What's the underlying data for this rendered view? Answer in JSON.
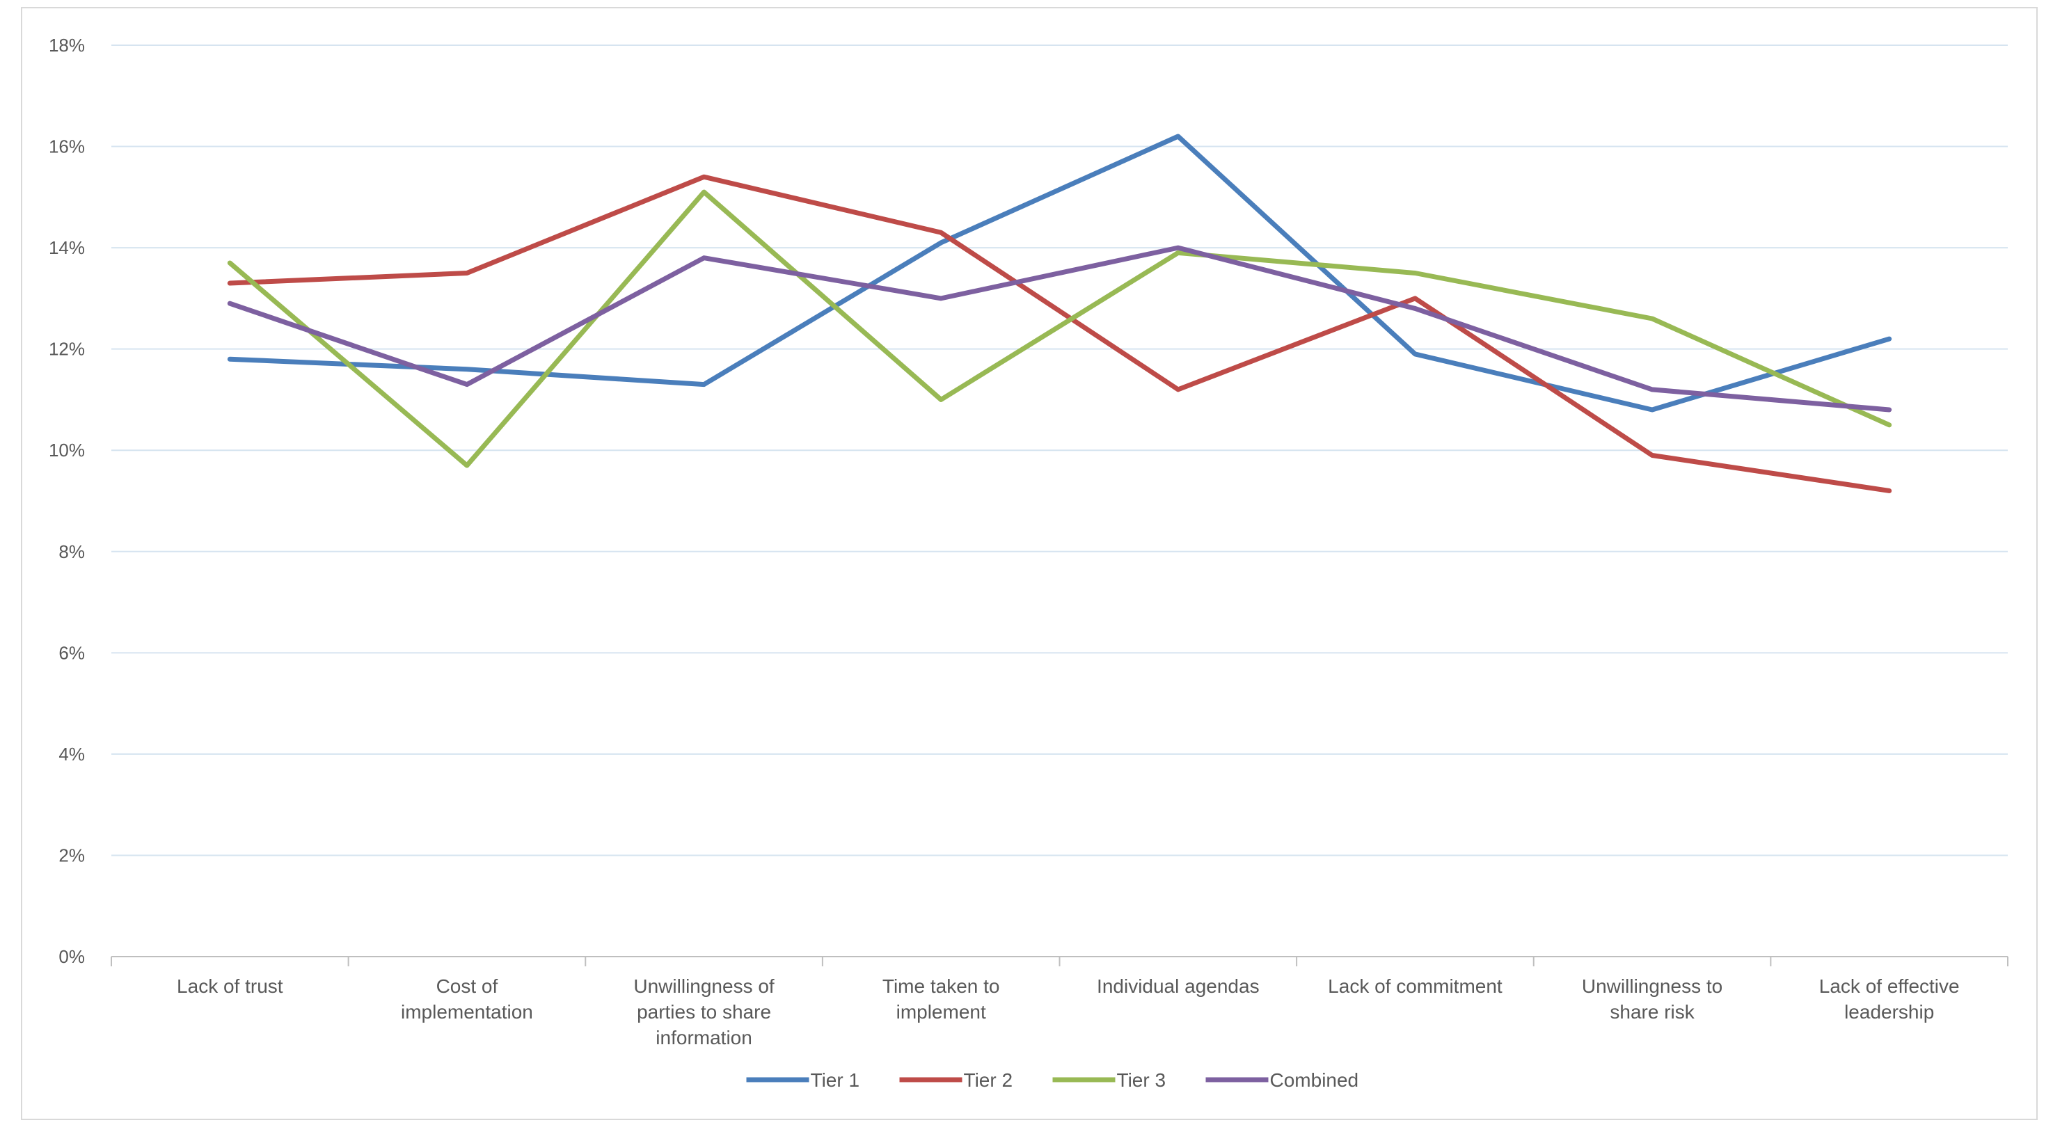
{
  "chart_data": {
    "type": "line",
    "title": "",
    "xlabel": "",
    "ylabel": "",
    "ylim": [
      0,
      18
    ],
    "y_ticks": [
      "0%",
      "2%",
      "4%",
      "6%",
      "8%",
      "10%",
      "12%",
      "14%",
      "16%",
      "18%"
    ],
    "y_tick_values": [
      0,
      2,
      4,
      6,
      8,
      10,
      12,
      14,
      16,
      18
    ],
    "grid": true,
    "legend_position": "bottom",
    "categories": [
      [
        "Lack of trust"
      ],
      [
        "Cost of",
        "implementation"
      ],
      [
        "Unwillingness of",
        "parties to share",
        "information"
      ],
      [
        "Time taken to",
        "implement"
      ],
      [
        "Individual agendas"
      ],
      [
        "Lack of commitment"
      ],
      [
        "Unwillingness to",
        "share risk"
      ],
      [
        "Lack of effective",
        "leadership"
      ]
    ],
    "series": [
      {
        "name": "Tier 1",
        "color": "#4a7ebb",
        "values": [
          11.8,
          11.6,
          11.3,
          14.1,
          16.2,
          11.9,
          10.8,
          12.2
        ]
      },
      {
        "name": "Tier 2",
        "color": "#be4b48",
        "values": [
          13.3,
          13.5,
          15.4,
          14.3,
          11.2,
          13.0,
          9.9,
          9.2
        ]
      },
      {
        "name": "Tier 3",
        "color": "#98b954",
        "values": [
          13.7,
          9.7,
          15.1,
          11.0,
          13.9,
          13.5,
          12.6,
          10.5
        ]
      },
      {
        "name": "Combined",
        "color": "#7d60a0",
        "values": [
          12.9,
          11.3,
          13.8,
          13.0,
          14.0,
          12.8,
          11.2,
          10.8
        ]
      }
    ]
  }
}
